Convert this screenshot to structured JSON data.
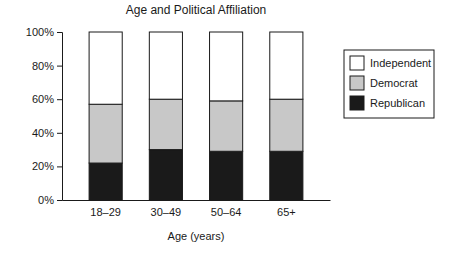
{
  "chart_data": {
    "type": "bar",
    "title": "Age and Political Affiliation",
    "x_label": "Age (years)",
    "categories": [
      "18–29",
      "30–49",
      "50–64",
      "65+"
    ],
    "series": [
      {
        "name": "Republican",
        "color": "#1a1a1a",
        "values": [
          22,
          30,
          29,
          29
        ]
      },
      {
        "name": "Democrat",
        "color": "#c8c8c8",
        "values": [
          35,
          30,
          30,
          31
        ]
      },
      {
        "name": "Independent",
        "color": "#ffffff",
        "values": [
          43,
          40,
          41,
          40
        ]
      }
    ],
    "stacked": true,
    "legend": "right",
    "ylim": [
      0,
      100
    ],
    "yticks": [
      {
        "value": 0,
        "label": "0%"
      },
      {
        "value": 20,
        "label": "20%"
      },
      {
        "value": 40,
        "label": "40%"
      },
      {
        "value": 60,
        "label": "60%"
      },
      {
        "value": 80,
        "label": "80%"
      },
      {
        "value": 100,
        "label": "100%"
      }
    ],
    "grid": false
  }
}
